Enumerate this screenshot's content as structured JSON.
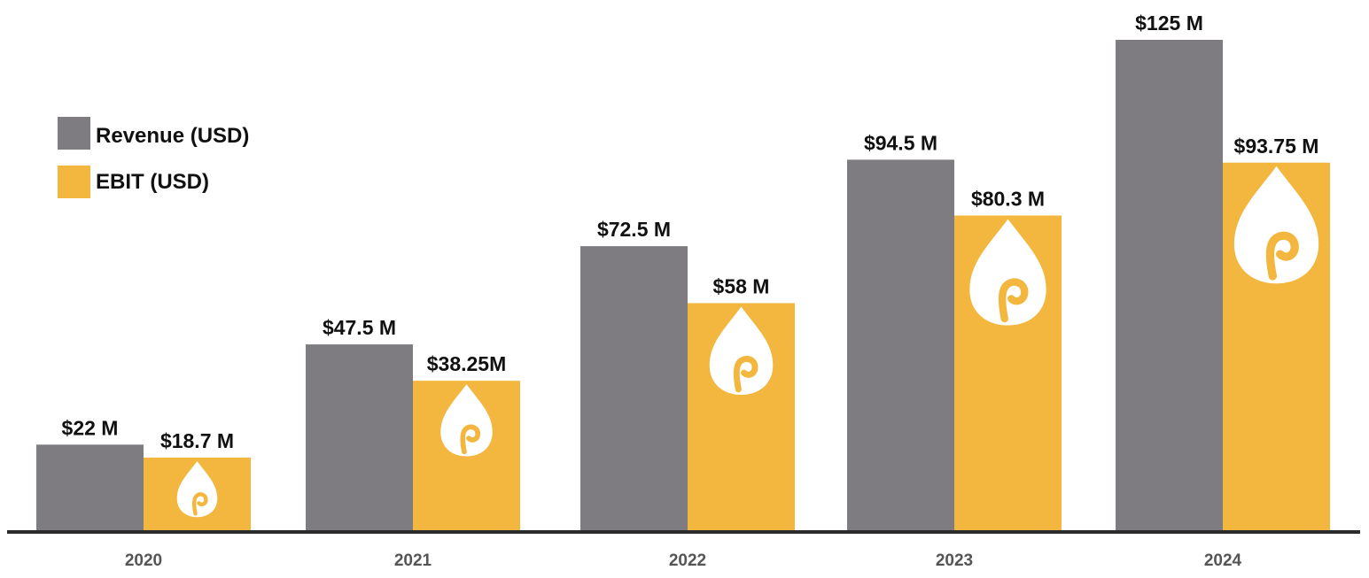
{
  "chart_data": {
    "type": "bar",
    "title": "",
    "xlabel": "",
    "ylabel": "",
    "categories": [
      "2020",
      "2021",
      "2022",
      "2023",
      "2024"
    ],
    "ylim": [
      0,
      125
    ],
    "series": [
      {
        "name": "Revenue (USD)",
        "color": "#7e7c80",
        "values": [
          22,
          47.5,
          72.5,
          94.5,
          125
        ],
        "labels": [
          "$22 M",
          "$47.5 M",
          "$72.5 M",
          "$94.5 M",
          "$125 M"
        ]
      },
      {
        "name": "EBIT (USD)",
        "color": "#f3b63e",
        "values": [
          18.7,
          38.25,
          58,
          80.3,
          93.75
        ],
        "labels": [
          "$18.7 M",
          "$38.25M",
          "$58 M",
          "$80.3 M",
          "$93.75 M"
        ],
        "icon": "oil-drop-icon"
      }
    ],
    "legend": "top-left",
    "grid": false
  }
}
